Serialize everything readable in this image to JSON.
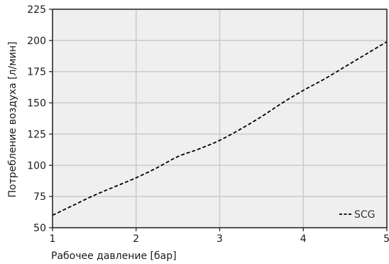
{
  "chart_data": {
    "type": "line",
    "title": "",
    "xlabel": "Рабочее давление [бар]",
    "ylabel": "Потребление воздуха [л/мин]",
    "xlim": [
      1,
      5
    ],
    "ylim": [
      50,
      225
    ],
    "x_ticks": [
      1,
      2,
      3,
      4,
      5
    ],
    "y_ticks": [
      50,
      75,
      100,
      125,
      150,
      175,
      200,
      225
    ],
    "grid": true,
    "legend_position": "bottom-right",
    "background_color": "#efefef",
    "grid_color": "#cccccc",
    "series": [
      {
        "name": "SCG",
        "style": "dashed",
        "color": "#000000",
        "x": [
          1,
          1.25,
          1.5,
          1.75,
          2,
          2.25,
          2.5,
          2.75,
          3,
          3.25,
          3.5,
          3.75,
          4,
          4.25,
          4.5,
          4.75,
          5
        ],
        "y": [
          60,
          68,
          76,
          83,
          90,
          98,
          107,
          113,
          120,
          129,
          139,
          150,
          160,
          169,
          179,
          189,
          199
        ]
      }
    ]
  }
}
